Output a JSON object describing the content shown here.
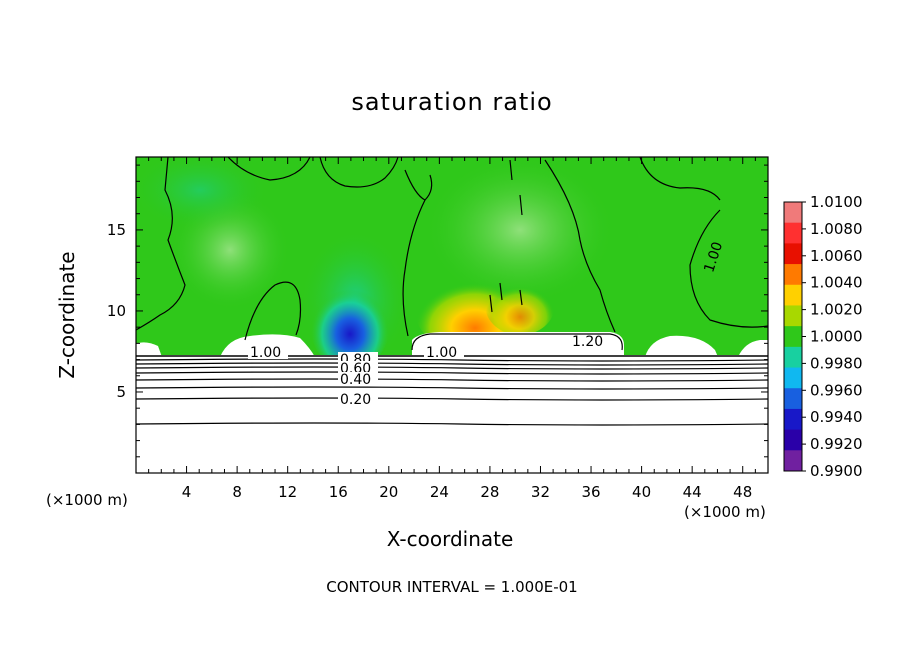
{
  "chart_data": {
    "type": "heatmap",
    "title": "saturation ratio",
    "xlabel": "X-coordinate",
    "ylabel": "Z-coordinate",
    "x_unit": "(×1000 m)",
    "y_unit": "(×1000 m)",
    "xlim": [
      0,
      50
    ],
    "ylim": [
      0,
      19.5
    ],
    "x_ticks": [
      "4",
      "8",
      "12",
      "16",
      "20",
      "24",
      "28",
      "32",
      "36",
      "40",
      "44",
      "48"
    ],
    "y_ticks": [
      "5",
      "10",
      "15"
    ],
    "colorbar": {
      "labels": [
        "1.0100",
        "1.0080",
        "1.0060",
        "1.0040",
        "1.0020",
        "1.0000",
        "0.9980",
        "0.9960",
        "0.9940",
        "0.9920",
        "0.9900"
      ],
      "colors": [
        "#f07a7a",
        "#ff3030",
        "#e81000",
        "#ff7a00",
        "#ffd000",
        "#a8d800",
        "#2fc81a",
        "#18d0a0",
        "#10b8f0",
        "#1860e0",
        "#1818c8",
        "#2a00a8",
        "#7020a0"
      ]
    },
    "contour_labels": [
      "1.00",
      "1.00",
      "1.20",
      "1.00",
      "0.80",
      "0.60",
      "0.40",
      "0.20"
    ],
    "contour_levels": [
      0.2,
      0.4,
      0.6,
      0.8,
      1.0,
      1.2
    ],
    "contour_interval_text": "CONTOUR INTERVAL = 1.000E-01"
  }
}
